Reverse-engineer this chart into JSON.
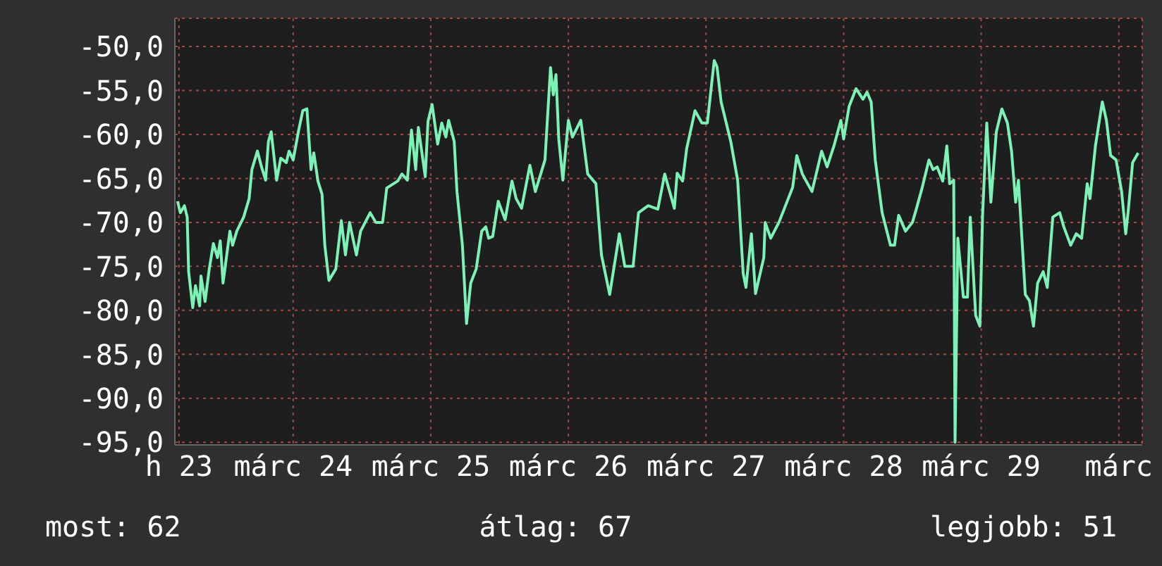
{
  "chart_data": {
    "type": "line",
    "x": [
      "--03-23T03:50",
      "--03-23T04:19",
      "--03-23T05:02",
      "--03-23T05:31",
      "--03-23T05:46",
      "--03-23T06:29",
      "--03-23T06:58",
      "--03-23T07:41",
      "--03-23T07:55",
      "--03-23T08:38",
      "--03-23T09:22",
      "--03-23T10:05",
      "--03-23T10:48",
      "--03-23T11:17",
      "--03-23T11:46",
      "--03-23T12:58",
      "--03-23T13:26",
      "--03-23T14:10",
      "--03-23T15:22",
      "--03-23T16:19",
      "--03-23T16:48",
      "--03-23T17:46",
      "--03-23T18:29",
      "--03-23T19:12",
      "--03-23T19:41",
      "--03-23T20:10",
      "--03-23T21:07",
      "--03-23T21:50",
      "--03-23T22:48",
      "--03-23T23:17",
      "--03-24T00:00",
      "--03-24T00:58",
      "--03-24T01:41",
      "--03-24T02:24",
      "--03-24T03:07",
      "--03-24T03:36",
      "--03-24T04:19",
      "--03-24T05:02",
      "--03-24T05:31",
      "--03-24T06:14",
      "--03-24T07:26",
      "--03-24T08:24",
      "--03-24T09:07",
      "--03-24T09:50",
      "--03-24T11:02",
      "--03-24T11:46",
      "--03-24T13:26",
      "--03-24T14:24",
      "--03-24T15:36",
      "--03-24T16:19",
      "--03-24T18:14",
      "--03-24T18:58",
      "--03-24T19:55",
      "--03-24T20:38",
      "--03-24T21:22",
      "--03-24T21:50",
      "--03-24T23:02",
      "--03-24T23:31",
      "--03-25T00:14",
      "--03-25T01:12",
      "--03-25T01:55",
      "--03-25T02:38",
      "--03-25T03:07",
      "--03-25T04:05",
      "--03-25T04:34",
      "--03-25T05:31",
      "--03-25T06:14",
      "--03-25T06:58",
      "--03-25T07:55",
      "--03-25T08:53",
      "--03-25T09:36",
      "--03-25T10:05",
      "--03-25T10:48",
      "--03-25T11:46",
      "--03-25T12:58",
      "--03-25T14:10",
      "--03-25T14:53",
      "--03-25T15:50",
      "--03-25T17:17",
      "--03-25T18:14",
      "--03-25T19:55",
      "--03-25T20:53",
      "--03-25T21:22",
      "--03-25T21:50",
      "--03-25T22:19",
      "--03-25T23:02",
      "--03-26T00:00",
      "--03-26T00:43",
      "--03-26T02:10",
      "--03-26T03:22",
      "--03-26T04:48",
      "--03-26T05:46",
      "--03-26T07:12",
      "--03-26T08:53",
      "--03-26T09:50",
      "--03-26T11:17",
      "--03-26T12:14",
      "--03-26T13:55",
      "--03-26T15:36",
      "--03-26T16:48",
      "--03-26T18:29",
      "--03-26T18:58",
      "--03-26T19:55",
      "--03-26T20:38",
      "--03-26T22:05",
      "--03-26T23:17",
      "--03-27T00:14",
      "--03-27T01:26",
      "--03-27T01:55",
      "--03-27T02:38",
      "--03-27T04:19",
      "--03-27T05:31",
      "--03-27T06:29",
      "--03-27T06:58",
      "--03-27T07:55",
      "--03-27T08:38",
      "--03-27T10:05",
      "--03-27T10:19",
      "--03-27T11:17",
      "--03-27T12:43",
      "--03-27T13:41",
      "--03-27T15:07",
      "--03-27T15:50",
      "--03-27T16:48",
      "--03-27T18:29",
      "--03-27T20:10",
      "--03-27T21:07",
      "--03-27T22:19",
      "--03-27T23:31",
      "--03-28T00:00",
      "--03-28T00:58",
      "--03-28T02:10",
      "--03-28T03:22",
      "--03-28T04:05",
      "--03-28T04:48",
      "--03-28T05:31",
      "--03-28T06:43",
      "--03-28T08:10",
      "--03-28T08:53",
      "--03-28T09:36",
      "--03-28T10:48",
      "--03-28T12:00",
      "--03-28T12:43",
      "--03-28T13:41",
      "--03-28T14:53",
      "--03-28T15:36",
      "--03-28T16:19",
      "--03-28T17:17",
      "--03-28T18:00",
      "--03-28T18:29",
      "--03-28T19:12",
      "--03-28T19:26",
      "--03-28T19:55",
      "--03-28T20:53",
      "--03-28T21:36",
      "--03-28T22:05",
      "--03-28T23:02",
      "--03-28T23:46",
      "--03-29T00:14",
      "--03-29T00:58",
      "--03-29T01:41",
      "--03-29T02:38",
      "--03-29T03:36",
      "--03-29T04:34",
      "--03-29T05:17",
      "--03-29T06:00",
      "--03-29T06:29",
      "--03-29T07:41",
      "--03-29T08:24",
      "--03-29T09:07",
      "--03-29T09:50",
      "--03-29T10:48",
      "--03-29T11:31",
      "--03-29T12:29",
      "--03-29T13:41",
      "--03-29T14:24",
      "--03-29T15:36",
      "--03-29T16:34",
      "--03-29T17:31",
      "--03-29T18:29",
      "--03-29T18:58",
      "--03-29T19:55",
      "--03-29T21:07",
      "--03-29T21:50",
      "--03-29T22:34",
      "--03-29T23:31",
      "--03-30T00:29",
      "--03-30T01:12",
      "--03-30T01:41",
      "--03-30T02:24",
      "--03-30T03:22"
    ],
    "series": [
      {
        "color": "#7ef2b6",
        "values": [
          -67.6,
          -68.9,
          -68.1,
          -69.4,
          -75.6,
          -79.7,
          -77.2,
          -79.5,
          -76.1,
          -79.0,
          -75.3,
          -72.4,
          -74.0,
          -72.1,
          -76.9,
          -71.0,
          -72.6,
          -71.0,
          -69.4,
          -67.3,
          -64.0,
          -61.9,
          -63.7,
          -65.2,
          -60.8,
          -59.7,
          -65.2,
          -62.7,
          -63.2,
          -61.9,
          -62.9,
          -59.5,
          -57.3,
          -57.1,
          -64.0,
          -62.1,
          -65.3,
          -66.8,
          -72.6,
          -76.6,
          -75.3,
          -69.8,
          -73.7,
          -70.0,
          -73.7,
          -71.0,
          -68.9,
          -70.0,
          -70.0,
          -66.1,
          -65.3,
          -64.5,
          -65.2,
          -59.5,
          -64.0,
          -59.2,
          -64.8,
          -58.5,
          -56.6,
          -61.1,
          -58.7,
          -60.3,
          -58.4,
          -60.8,
          -66.5,
          -72.6,
          -81.5,
          -76.9,
          -75.3,
          -71.0,
          -70.5,
          -71.8,
          -71.6,
          -67.6,
          -69.7,
          -65.3,
          -67.3,
          -68.4,
          -63.5,
          -66.5,
          -62.9,
          -52.4,
          -55.5,
          -53.2,
          -60.5,
          -65.2,
          -58.4,
          -60.3,
          -58.4,
          -64.5,
          -65.6,
          -73.7,
          -78.2,
          -71.3,
          -75.0,
          -75.0,
          -68.9,
          -68.1,
          -68.5,
          -64.5,
          -68.4,
          -64.4,
          -65.3,
          -61.6,
          -57.3,
          -58.7,
          -58.7,
          -51.6,
          -52.3,
          -56.3,
          -60.8,
          -65.2,
          -75.8,
          -77.4,
          -71.3,
          -78.1,
          -74.0,
          -70.0,
          -71.8,
          -70.0,
          -68.4,
          -66.0,
          -62.4,
          -64.5,
          -66.5,
          -61.9,
          -63.7,
          -61.3,
          -58.4,
          -60.5,
          -56.8,
          -54.8,
          -56.0,
          -55.2,
          -56.3,
          -62.9,
          -68.9,
          -72.6,
          -72.6,
          -69.2,
          -71.0,
          -70.0,
          -68.4,
          -66.1,
          -62.9,
          -64.0,
          -63.7,
          -65.3,
          -61.3,
          -65.6,
          -65.2,
          -95.0,
          -71.8,
          -78.5,
          -78.5,
          -69.4,
          -80.6,
          -81.8,
          -69.2,
          -58.7,
          -67.7,
          -59.7,
          -57.1,
          -58.7,
          -61.9,
          -67.7,
          -65.2,
          -78.2,
          -78.9,
          -81.8,
          -76.9,
          -75.6,
          -77.4,
          -69.4,
          -68.9,
          -70.5,
          -72.6,
          -71.3,
          -71.8,
          -65.6,
          -67.3,
          -61.3,
          -56.3,
          -58.4,
          -62.4,
          -62.9,
          -66.5,
          -71.3,
          -68.4,
          -63.2,
          -62.1
        ]
      }
    ],
    "xlim": [
      "--03-23T03:22",
      "--03-30T04:05"
    ],
    "xticks": [
      {
        "value": "--03-23T04:05",
        "label": "h 23"
      },
      {
        "value": "--03-24",
        "label": "márc 24"
      },
      {
        "value": "--03-25",
        "label": "márc 25"
      },
      {
        "value": "--03-26",
        "label": "márc 26"
      },
      {
        "value": "--03-27",
        "label": "márc 27"
      },
      {
        "value": "--03-28",
        "label": "márc 28"
      },
      {
        "value": "--03-29",
        "label": "márc 29"
      },
      {
        "value": "--03-30",
        "label": "márc"
      }
    ],
    "ylim": [
      -95.3,
      -46.8
    ],
    "yticks": [
      {
        "value": -95,
        "label": "-95,0"
      },
      {
        "value": -90,
        "label": "-90,0"
      },
      {
        "value": -85,
        "label": "-85,0"
      },
      {
        "value": -80,
        "label": "-80,0"
      },
      {
        "value": -75,
        "label": "-75,0"
      },
      {
        "value": -70,
        "label": "-70,0"
      },
      {
        "value": -65,
        "label": "-65,0"
      },
      {
        "value": -60,
        "label": "-60,0"
      },
      {
        "value": -55,
        "label": "-55,0"
      },
      {
        "value": -50,
        "label": "-50,0"
      }
    ],
    "grid": true,
    "annotations": [
      "most: 62",
      "átlag: 67",
      "legjobb: 51"
    ]
  }
}
